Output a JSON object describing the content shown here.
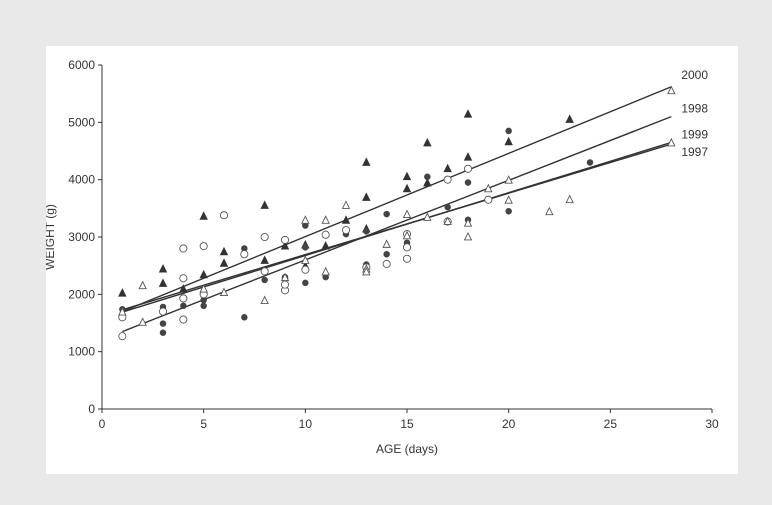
{
  "chart_data": {
    "type": "scatter",
    "title": "",
    "xlabel": "AGE (days)",
    "ylabel": "WEIGHT (g)",
    "xlim": [
      0,
      30
    ],
    "ylim": [
      0,
      6000
    ],
    "xticks": [
      0,
      5,
      10,
      15,
      20,
      25,
      30
    ],
    "yticks": [
      0,
      1000,
      2000,
      3000,
      4000,
      5000,
      6000
    ],
    "grid": false,
    "legend": "none",
    "series": [
      {
        "name": "2000",
        "marker": "filled-triangle",
        "color": "#333333",
        "points": [
          [
            1,
            2030
          ],
          [
            3,
            2450
          ],
          [
            3,
            2200
          ],
          [
            4,
            2100
          ],
          [
            5,
            3370
          ],
          [
            5,
            2350
          ],
          [
            6,
            2750
          ],
          [
            6,
            2550
          ],
          [
            8,
            3560
          ],
          [
            8,
            2600
          ],
          [
            9,
            2850
          ],
          [
            10,
            2870
          ],
          [
            10,
            2500
          ],
          [
            11,
            2850
          ],
          [
            12,
            3300
          ],
          [
            13,
            4310
          ],
          [
            13,
            3700
          ],
          [
            13,
            3150
          ],
          [
            15,
            4060
          ],
          [
            15,
            3850
          ],
          [
            16,
            4650
          ],
          [
            16,
            3950
          ],
          [
            17,
            4200
          ],
          [
            18,
            5150
          ],
          [
            18,
            4400
          ],
          [
            20,
            4670
          ],
          [
            23,
            5060
          ]
        ],
        "fit": {
          "from": [
            1,
            1700
          ],
          "to": [
            28,
            5620
          ]
        }
      },
      {
        "name": "1998",
        "marker": "filled-circle",
        "color": "#444444",
        "points": [
          [
            1,
            1740
          ],
          [
            3,
            1490
          ],
          [
            3,
            1330
          ],
          [
            3,
            1780
          ],
          [
            4,
            1800
          ],
          [
            5,
            1800
          ],
          [
            5,
            1900
          ],
          [
            7,
            1600
          ],
          [
            7,
            2800
          ],
          [
            8,
            2250
          ],
          [
            9,
            2300
          ],
          [
            9,
            2280
          ],
          [
            10,
            2200
          ],
          [
            10,
            2820
          ],
          [
            10,
            3200
          ],
          [
            11,
            2300
          ],
          [
            12,
            3050
          ],
          [
            13,
            2520
          ],
          [
            13,
            3100
          ],
          [
            14,
            3400
          ],
          [
            14,
            2700
          ],
          [
            15,
            2900
          ],
          [
            16,
            4050
          ],
          [
            17,
            3520
          ],
          [
            18,
            3300
          ],
          [
            18,
            3950
          ],
          [
            20,
            4850
          ],
          [
            20,
            3450
          ],
          [
            24,
            4300
          ]
        ],
        "fit": {
          "from": [
            1,
            1350
          ],
          "to": [
            28,
            5100
          ]
        }
      },
      {
        "name": "1999",
        "marker": "open-circle",
        "color": "#555555",
        "points": [
          [
            1,
            1600
          ],
          [
            1,
            1270
          ],
          [
            3,
            1700
          ],
          [
            4,
            2800
          ],
          [
            4,
            2280
          ],
          [
            4,
            1930
          ],
          [
            4,
            1560
          ],
          [
            5,
            2840
          ],
          [
            5,
            2000
          ],
          [
            6,
            3380
          ],
          [
            7,
            2700
          ],
          [
            8,
            3000
          ],
          [
            8,
            2400
          ],
          [
            9,
            2950
          ],
          [
            9,
            2070
          ],
          [
            9,
            2170
          ],
          [
            10,
            2430
          ],
          [
            11,
            3040
          ],
          [
            12,
            3120
          ],
          [
            13,
            2470
          ],
          [
            14,
            2530
          ],
          [
            15,
            3050
          ],
          [
            15,
            2820
          ],
          [
            15,
            2620
          ],
          [
            17,
            3270
          ],
          [
            17,
            4000
          ],
          [
            18,
            4190
          ],
          [
            19,
            3650
          ]
        ],
        "fit": {
          "from": [
            1,
            1690
          ],
          "to": [
            28,
            4650
          ]
        }
      },
      {
        "name": "1997",
        "marker": "open-triangle",
        "color": "#555555",
        "points": [
          [
            1,
            1700
          ],
          [
            2,
            2160
          ],
          [
            2,
            1520
          ],
          [
            5,
            2100
          ],
          [
            6,
            2040
          ],
          [
            8,
            1900
          ],
          [
            9,
            2300
          ],
          [
            10,
            3300
          ],
          [
            10,
            2600
          ],
          [
            11,
            3300
          ],
          [
            11,
            2400
          ],
          [
            12,
            3560
          ],
          [
            13,
            2450
          ],
          [
            13,
            2400
          ],
          [
            14,
            2880
          ],
          [
            15,
            3400
          ],
          [
            15,
            3030
          ],
          [
            16,
            3350
          ],
          [
            17,
            3280
          ],
          [
            18,
            3250
          ],
          [
            18,
            3010
          ],
          [
            19,
            3850
          ],
          [
            20,
            4000
          ],
          [
            20,
            3650
          ],
          [
            22,
            3450
          ],
          [
            23,
            3660
          ],
          [
            28,
            5560
          ],
          [
            28,
            4650
          ]
        ],
        "fit": {
          "from": [
            1,
            1730
          ],
          "to": [
            28,
            4620
          ]
        }
      }
    ]
  }
}
